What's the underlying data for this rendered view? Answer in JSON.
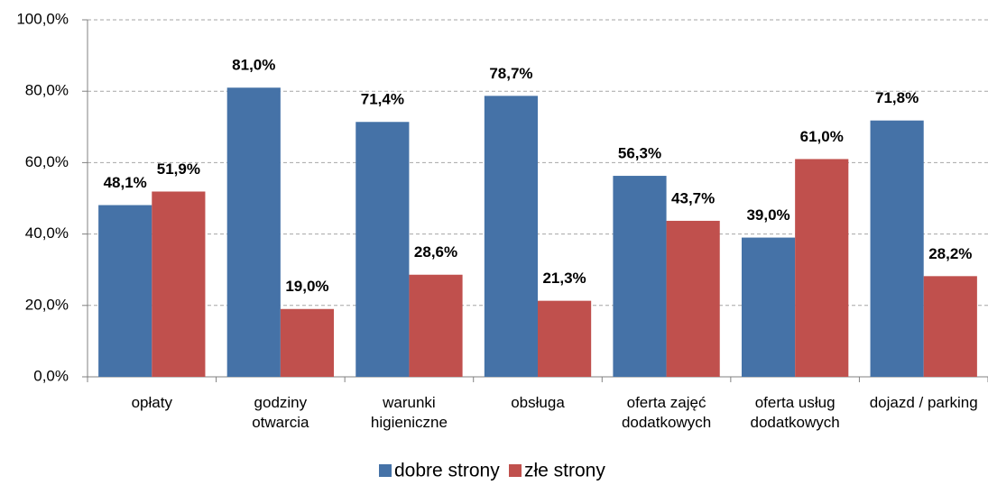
{
  "chart_data": {
    "type": "bar",
    "categories": [
      "opłaty",
      "godziny\notwarcia",
      "warunki\nhigieniczne",
      "obsługa",
      "oferta zajęć\ndodatkowych",
      "oferta usług\ndodatkowych",
      "dojazd / parking"
    ],
    "series": [
      {
        "name": "dobre strony",
        "color": "#4572a7",
        "values": [
          48.1,
          81.0,
          71.4,
          78.7,
          56.3,
          39.0,
          71.8
        ],
        "value_labels": [
          "48,1%",
          "81,0%",
          "71,4%",
          "78,7%",
          "56,3%",
          "39,0%",
          "71,8%"
        ]
      },
      {
        "name": "złe strony",
        "color": "#c0504d",
        "values": [
          51.9,
          19.0,
          28.6,
          21.3,
          43.7,
          61.0,
          28.2
        ],
        "value_labels": [
          "51,9%",
          "19,0%",
          "28,6%",
          "21,3%",
          "43,7%",
          "61,0%",
          "28,2%"
        ]
      }
    ],
    "ylim": [
      0,
      100
    ],
    "yticks": [
      {
        "value": 0,
        "label": "0,0%"
      },
      {
        "value": 20,
        "label": "20,0%"
      },
      {
        "value": 40,
        "label": "40,0%"
      },
      {
        "value": 60,
        "label": "60,0%"
      },
      {
        "value": 80,
        "label": "80,0%"
      },
      {
        "value": 100,
        "label": "100,0%"
      }
    ],
    "grid": true,
    "legend": "bottom"
  }
}
